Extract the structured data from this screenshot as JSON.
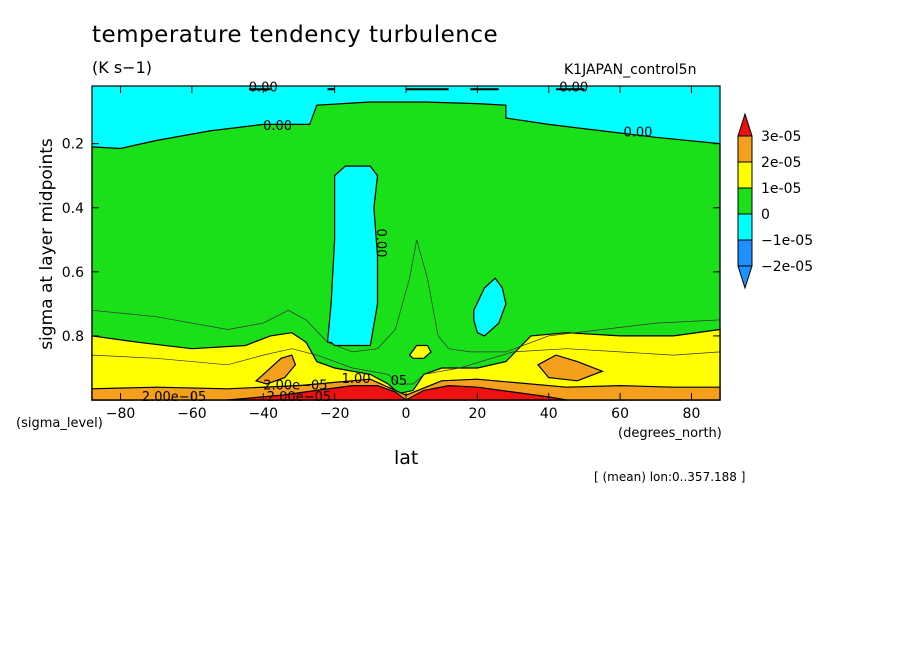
{
  "chart_data": {
    "type": "contour",
    "title": "temperature tendency turbulence",
    "units": "(K s−1)",
    "run_label": "K1JAPAN_control5n",
    "xlabel": "lat",
    "ylabel": "sigma at layer midpoints",
    "x_unit_label": "(degrees_north)",
    "y_unit_label": "(sigma_level)",
    "footer": "[ (mean) lon:0..357.188 ]",
    "xlim": [
      -88,
      88
    ],
    "ylim": [
      1.0,
      0.02
    ],
    "x_ticks": [
      -80,
      -60,
      -40,
      -20,
      0,
      20,
      40,
      60,
      80
    ],
    "x_tick_labels": [
      "−80",
      "−60",
      "−40",
      "−20",
      "0",
      "20",
      "40",
      "60",
      "80"
    ],
    "y_ticks": [
      0.2,
      0.4,
      0.6,
      0.8
    ],
    "y_tick_labels": [
      "0.2",
      "0.4",
      "0.6",
      "0.8"
    ],
    "levels": [
      {
        "label": "3e-05",
        "color": "#ee1111"
      },
      {
        "label": "2e-05",
        "color": "#f5a01d"
      },
      {
        "label": "1e-05",
        "color": "#ffff00"
      },
      {
        "label": "0",
        "color": "#19e019"
      },
      {
        "label": "−1e-05",
        "color": "#00ffff"
      },
      {
        "label": "−2e-05",
        "color": "#1e90ff"
      }
    ],
    "regions": [
      {
        "level": "0",
        "x": [
          -88,
          -88,
          -80,
          -70,
          -55,
          -40,
          -27,
          -25,
          -10,
          5,
          20,
          28,
          28,
          40,
          55,
          70,
          88,
          88
        ],
        "y": [
          1.0,
          0.21,
          0.215,
          0.19,
          0.16,
          0.14,
          0.14,
          0.08,
          0.07,
          0.07,
          0.075,
          0.08,
          0.12,
          0.14,
          0.16,
          0.18,
          0.2,
          1.0
        ]
      },
      {
        "level": "−1e-05",
        "x": [
          -22,
          -21,
          -20,
          -20,
          -17,
          -10,
          -8,
          -9,
          -8,
          -8,
          -10,
          -20,
          -21
        ],
        "y": [
          0.82,
          0.7,
          0.5,
          0.3,
          0.27,
          0.27,
          0.3,
          0.4,
          0.55,
          0.7,
          0.83,
          0.83,
          0.82
        ]
      },
      {
        "level": "−1e-05",
        "x": [
          19,
          22,
          25,
          27,
          28,
          26,
          22,
          20,
          19
        ],
        "y": [
          0.72,
          0.65,
          0.62,
          0.65,
          0.7,
          0.76,
          0.8,
          0.79,
          0.75
        ]
      },
      {
        "level": "1e-05",
        "x": [
          -88,
          -88,
          -75,
          -60,
          -45,
          -38,
          -32,
          -28,
          -25,
          -20,
          -10,
          -5,
          -2,
          2,
          5,
          10,
          20,
          28,
          35,
          45,
          60,
          75,
          88,
          88
        ],
        "y": [
          1.0,
          0.8,
          0.82,
          0.84,
          0.83,
          0.8,
          0.79,
          0.82,
          0.88,
          0.9,
          0.92,
          0.95,
          0.98,
          0.97,
          0.92,
          0.9,
          0.9,
          0.88,
          0.8,
          0.79,
          0.8,
          0.8,
          0.78,
          1.0
        ]
      },
      {
        "level": "1e-05",
        "x": [
          1,
          3,
          6,
          7,
          5,
          2,
          1
        ],
        "y": [
          0.86,
          0.83,
          0.83,
          0.85,
          0.87,
          0.87,
          0.86
        ]
      },
      {
        "level": "2e-05",
        "x": [
          -40,
          -35,
          -32,
          -31,
          -34,
          -39,
          -42,
          -40
        ],
        "y": [
          0.92,
          0.87,
          0.86,
          0.89,
          0.93,
          0.95,
          0.94,
          0.92
        ]
      },
      {
        "level": "2e-05",
        "x": [
          37,
          42,
          48,
          55,
          48,
          40,
          37
        ],
        "y": [
          0.89,
          0.86,
          0.88,
          0.91,
          0.94,
          0.93,
          0.89
        ]
      },
      {
        "level": "2e-05",
        "x": [
          -88,
          -88,
          -70,
          -50,
          -30,
          -20,
          -10,
          0,
          10,
          20,
          30,
          45,
          60,
          75,
          88,
          88
        ],
        "y": [
          1.0,
          0.965,
          0.96,
          0.965,
          0.955,
          0.945,
          0.935,
          0.985,
          0.94,
          0.935,
          0.945,
          0.96,
          0.955,
          0.96,
          0.96,
          1.0
        ]
      },
      {
        "level": "3e-05",
        "x": [
          -50,
          -35,
          -25,
          -15,
          -8,
          -3,
          0,
          5,
          12,
          20,
          30,
          40,
          45
        ],
        "y": [
          1.0,
          0.985,
          0.97,
          0.955,
          0.955,
          0.975,
          1.0,
          0.97,
          0.955,
          0.96,
          0.975,
          0.99,
          1.0
        ]
      }
    ],
    "contour_labels": [
      {
        "text": "0.00",
        "x": -40,
        "y": 0.025
      },
      {
        "text": "0.00",
        "x": 47,
        "y": 0.025
      },
      {
        "text": "0.00",
        "x": -36,
        "y": 0.145
      },
      {
        "text": "0.00",
        "x": 65,
        "y": 0.165
      },
      {
        "text": "0.00",
        "x": -7,
        "y": 0.51,
        "rotate": 90
      },
      {
        "text": "2.00e−05",
        "x": -31,
        "y": 0.955
      },
      {
        "text": "1.00",
        "x": -14,
        "y": 0.935
      },
      {
        "text": "05",
        "x": -2,
        "y": 0.94
      },
      {
        "text": "2.00e−05",
        "x": -65,
        "y": 0.99
      },
      {
        "text": "2.00e−05",
        "x": -30,
        "y": 0.99
      }
    ]
  }
}
